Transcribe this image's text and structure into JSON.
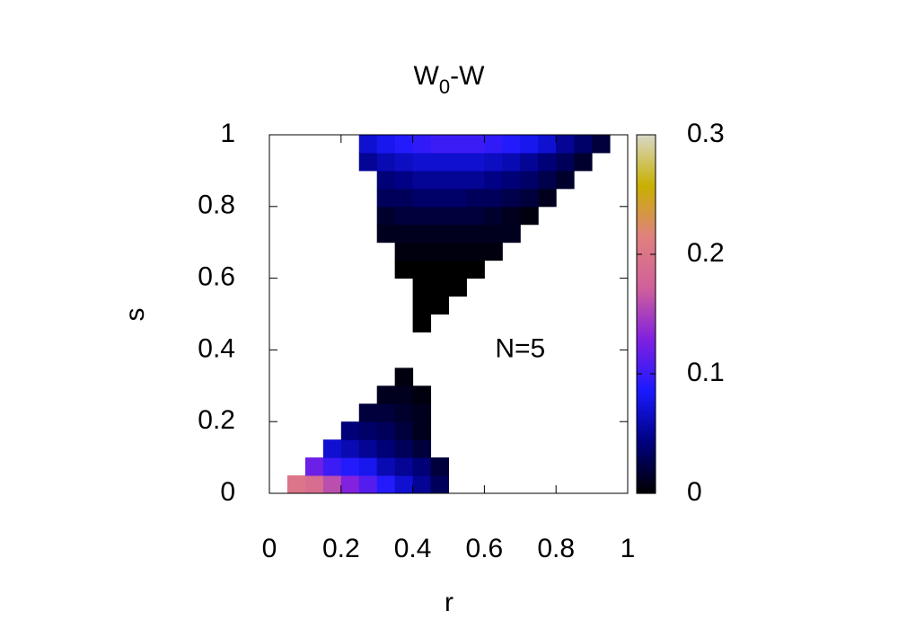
{
  "chart_data": {
    "type": "heatmap",
    "title_parts": [
      "W",
      "0",
      "-W"
    ],
    "xlabel": "r",
    "ylabel": "s",
    "annotation": {
      "text": "N=5",
      "x": 0.7,
      "y": 0.4
    },
    "xlim": [
      0,
      1
    ],
    "ylim": [
      0,
      1
    ],
    "zlim": [
      0,
      0.3
    ],
    "xticks": [
      0,
      0.2,
      0.4,
      0.6,
      0.8,
      1
    ],
    "yticks": [
      0,
      0.2,
      0.4,
      0.6,
      0.8,
      1
    ],
    "zticks": [
      0,
      0.1,
      0.2,
      0.3
    ],
    "palette": [
      "#000000",
      "#000080",
      "#1a1aff",
      "#8020e0",
      "#d0609a",
      "#e08080",
      "#c8b000",
      "#d8d8c8"
    ],
    "x": [
      0.025,
      0.075,
      0.125,
      0.175,
      0.225,
      0.275,
      0.325,
      0.375,
      0.425,
      0.475,
      0.525,
      0.575,
      0.625,
      0.675,
      0.725,
      0.775,
      0.825,
      0.875,
      0.925,
      0.975
    ],
    "y": [
      0.025,
      0.075,
      0.125,
      0.175,
      0.225,
      0.275,
      0.325,
      0.375,
      0.425,
      0.475,
      0.525,
      0.575,
      0.625,
      0.675,
      0.725,
      0.775,
      0.825,
      0.875,
      0.925,
      0.975
    ],
    "z": [
      [
        null,
        0.2,
        0.19,
        0.16,
        0.13,
        0.11,
        0.09,
        0.07,
        0.05,
        0.03,
        null,
        null,
        null,
        null,
        null,
        null,
        null,
        null,
        null,
        null
      ],
      [
        null,
        null,
        0.12,
        0.1,
        0.09,
        0.08,
        0.06,
        0.05,
        0.04,
        0.02,
        null,
        null,
        null,
        null,
        null,
        null,
        null,
        null,
        null,
        null
      ],
      [
        null,
        null,
        null,
        0.07,
        0.06,
        0.05,
        0.04,
        0.03,
        0.02,
        null,
        null,
        null,
        null,
        null,
        null,
        null,
        null,
        null,
        null,
        null
      ],
      [
        null,
        null,
        null,
        null,
        0.04,
        0.035,
        0.03,
        0.02,
        0.01,
        null,
        null,
        null,
        null,
        null,
        null,
        null,
        null,
        null,
        null,
        null
      ],
      [
        null,
        null,
        null,
        null,
        null,
        0.02,
        0.02,
        0.015,
        0.01,
        null,
        null,
        null,
        null,
        null,
        null,
        null,
        null,
        null,
        null,
        null
      ],
      [
        null,
        null,
        null,
        null,
        null,
        null,
        0.01,
        0.01,
        0.005,
        null,
        null,
        null,
        null,
        null,
        null,
        null,
        null,
        null,
        null,
        null
      ],
      [
        null,
        null,
        null,
        null,
        null,
        null,
        null,
        0.005,
        null,
        null,
        null,
        null,
        null,
        null,
        null,
        null,
        null,
        null,
        null,
        null
      ],
      [
        null,
        null,
        null,
        null,
        null,
        null,
        null,
        null,
        null,
        null,
        null,
        null,
        null,
        null,
        null,
        null,
        null,
        null,
        null,
        null
      ],
      [
        null,
        null,
        null,
        null,
        null,
        null,
        null,
        null,
        null,
        null,
        null,
        null,
        null,
        null,
        null,
        null,
        null,
        null,
        null,
        null
      ],
      [
        null,
        null,
        null,
        null,
        null,
        null,
        null,
        null,
        0,
        null,
        null,
        null,
        null,
        null,
        null,
        null,
        null,
        null,
        null,
        null
      ],
      [
        null,
        null,
        null,
        null,
        null,
        null,
        null,
        null,
        0,
        0,
        null,
        null,
        null,
        null,
        null,
        null,
        null,
        null,
        null,
        null
      ],
      [
        null,
        null,
        null,
        null,
        null,
        null,
        null,
        null,
        0,
        0,
        0,
        null,
        null,
        null,
        null,
        null,
        null,
        null,
        null,
        null
      ],
      [
        null,
        null,
        null,
        null,
        null,
        null,
        null,
        0,
        0,
        0,
        0,
        0,
        null,
        null,
        null,
        null,
        null,
        null,
        null,
        null
      ],
      [
        null,
        null,
        null,
        null,
        null,
        null,
        null,
        0.005,
        0.005,
        0.005,
        0.005,
        0.005,
        0.005,
        null,
        null,
        null,
        null,
        null,
        null,
        null
      ],
      [
        null,
        null,
        null,
        null,
        null,
        null,
        0.01,
        0.01,
        0.01,
        0.01,
        0.01,
        0.01,
        0.01,
        0.01,
        null,
        null,
        null,
        null,
        null,
        null
      ],
      [
        null,
        null,
        null,
        null,
        null,
        null,
        0.015,
        0.02,
        0.02,
        0.02,
        0.02,
        0.02,
        0.015,
        0.01,
        0.005,
        null,
        null,
        null,
        null,
        null
      ],
      [
        null,
        null,
        null,
        null,
        null,
        null,
        0.03,
        0.03,
        0.035,
        0.035,
        0.035,
        0.03,
        0.03,
        0.025,
        0.02,
        0.01,
        null,
        null,
        null,
        null
      ],
      [
        null,
        null,
        null,
        null,
        null,
        null,
        0.04,
        0.045,
        0.05,
        0.05,
        0.05,
        0.05,
        0.045,
        0.04,
        0.035,
        0.025,
        0.015,
        null,
        null,
        null
      ],
      [
        null,
        null,
        null,
        null,
        null,
        0.05,
        0.06,
        0.065,
        0.07,
        0.07,
        0.07,
        0.07,
        0.065,
        0.06,
        0.05,
        0.04,
        0.03,
        0.015,
        null,
        null
      ],
      [
        null,
        null,
        null,
        null,
        null,
        0.07,
        0.08,
        0.09,
        0.095,
        0.1,
        0.1,
        0.1,
        0.095,
        0.09,
        0.08,
        0.07,
        0.05,
        0.035,
        0.02,
        null
      ]
    ]
  }
}
